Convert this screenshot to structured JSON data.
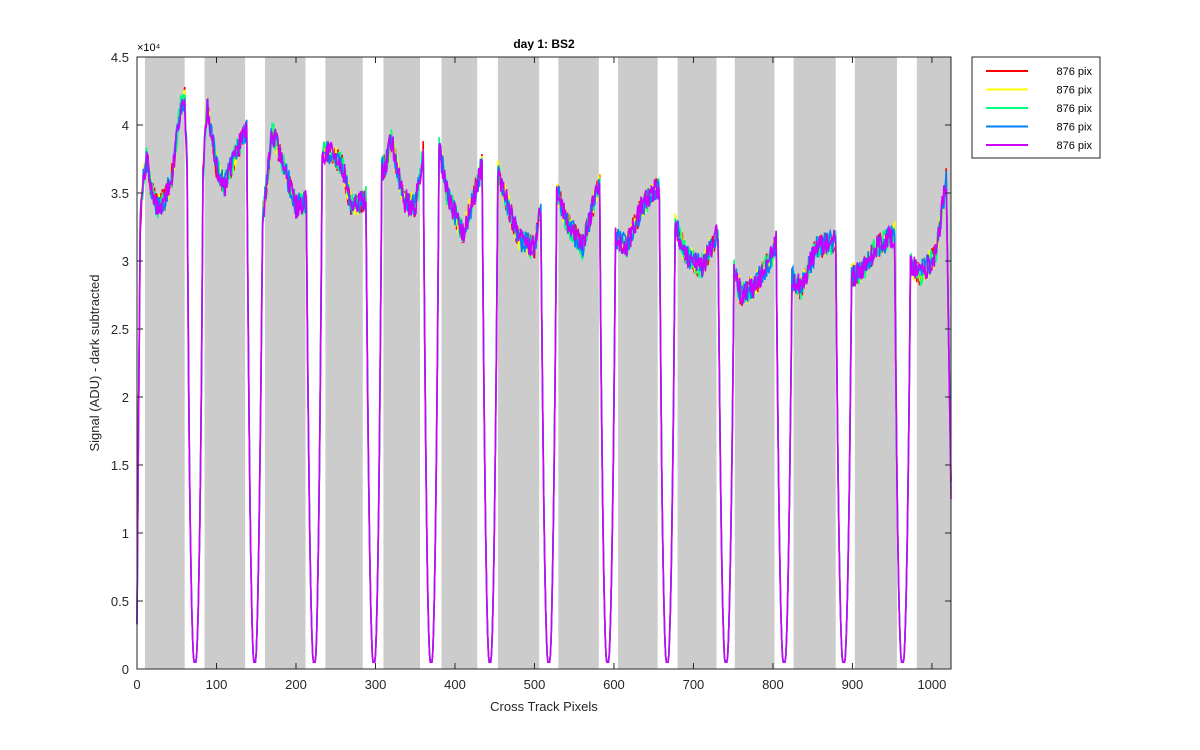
{
  "chart_data": {
    "type": "line",
    "title": "day 1: BS2",
    "xlabel": "Cross Track Pixels",
    "ylabel": "Signal (ADU) - dark subtracted",
    "y_exponent_label": "×10⁴",
    "xlim": [
      0,
      1024
    ],
    "ylim": [
      0,
      4.5
    ],
    "y_multiplier": 10000,
    "x_ticks": [
      0,
      100,
      200,
      300,
      400,
      500,
      600,
      700,
      800,
      900,
      1000
    ],
    "x_tick_labels": [
      "0",
      "100",
      "200",
      "300",
      "400",
      "500",
      "600",
      "700",
      "800",
      "900",
      "1000"
    ],
    "y_ticks": [
      0,
      0.5,
      1,
      1.5,
      2,
      2.5,
      3,
      3.5,
      4,
      4.5
    ],
    "y_tick_labels": [
      "0",
      "0.5",
      "1",
      "1.5",
      "2",
      "2.5",
      "3",
      "3.5",
      "4",
      "4.5"
    ],
    "grid": false,
    "legend_position": "outside-top-right",
    "shaded_bands": [
      [
        10,
        60
      ],
      [
        85,
        136
      ],
      [
        161,
        212
      ],
      [
        237,
        284
      ],
      [
        310,
        356
      ],
      [
        383,
        428
      ],
      [
        454,
        506
      ],
      [
        530,
        581
      ],
      [
        605,
        655
      ],
      [
        680,
        729
      ],
      [
        752,
        802
      ],
      [
        826,
        879
      ],
      [
        903,
        956
      ],
      [
        981,
        1024
      ]
    ],
    "band_color": "#cccccc",
    "dips_x": [
      73,
      148,
      223,
      298,
      370,
      444,
      518,
      592,
      667,
      741,
      814,
      889,
      963
    ],
    "dip_min": 0.05,
    "peaks_profile": {
      "x": [
        0,
        4,
        8,
        12,
        18,
        25,
        35,
        45,
        55,
        60,
        66,
        80,
        88,
        100,
        110,
        125,
        140,
        152,
        158,
        170,
        185,
        200,
        215,
        230,
        245,
        258,
        270,
        285,
        300,
        313,
        320,
        335,
        350,
        360,
        378,
        390,
        410,
        430,
        438,
        452,
        465,
        480,
        500,
        510,
        526,
        540,
        560,
        580,
        586,
        600,
        615,
        635,
        655,
        660,
        675,
        690,
        710,
        730,
        735,
        750,
        760,
        775,
        800,
        806,
        820,
        835,
        855,
        880,
        883,
        895,
        910,
        930,
        955,
        957,
        970,
        985,
        1005,
        1018,
        1024
      ],
      "y": [
        0.4,
        3.3,
        3.6,
        3.75,
        3.55,
        3.4,
        3.45,
        3.65,
        4.15,
        4.2,
        3.2,
        3.3,
        4.15,
        3.7,
        3.55,
        3.8,
        4.0,
        3.9,
        3.3,
        3.95,
        3.7,
        3.4,
        3.45,
        3.8,
        3.8,
        3.7,
        3.4,
        3.45,
        3.65,
        3.7,
        3.9,
        3.45,
        3.4,
        3.8,
        3.9,
        3.5,
        3.2,
        3.6,
        3.85,
        3.7,
        3.45,
        3.15,
        3.1,
        3.45,
        3.55,
        3.3,
        3.1,
        3.55,
        3.55,
        3.2,
        3.1,
        3.4,
        3.55,
        3.45,
        3.3,
        3.05,
        2.95,
        3.2,
        3.1,
        2.95,
        2.75,
        2.8,
        3.05,
        3.2,
        2.9,
        2.8,
        3.1,
        3.15,
        3.1,
        2.9,
        2.9,
        3.1,
        3.2,
        3.1,
        3.0,
        2.9,
        3.05,
        3.6,
        1.3
      ]
    },
    "series": [
      {
        "name": "876 pix",
        "color": "#ff0000"
      },
      {
        "name": "876 pix",
        "color": "#ffff00"
      },
      {
        "name": "876 pix",
        "color": "#00ff7f"
      },
      {
        "name": "876 pix",
        "color": "#0080ff"
      },
      {
        "name": "876 pix",
        "color": "#cc00ff"
      }
    ]
  }
}
